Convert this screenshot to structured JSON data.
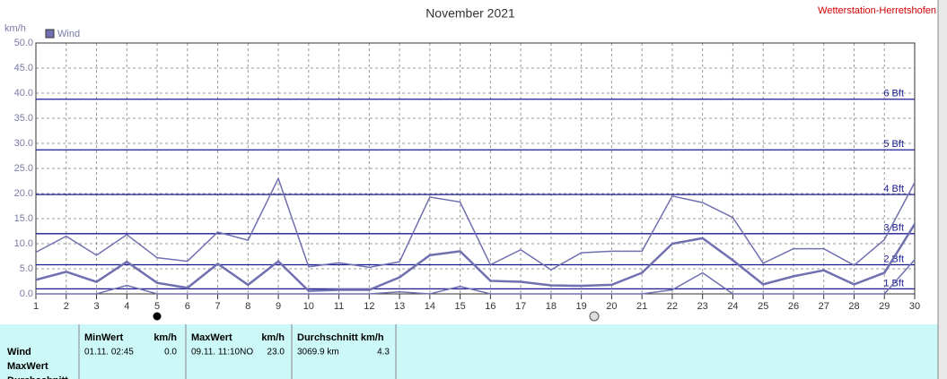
{
  "chart_data": {
    "type": "line",
    "title": "November 2021",
    "station": "Wetterstation-Herretshofen",
    "y_label": "km/h",
    "x": [
      1,
      2,
      3,
      4,
      5,
      6,
      7,
      8,
      9,
      10,
      11,
      12,
      13,
      14,
      15,
      16,
      17,
      18,
      19,
      20,
      21,
      22,
      23,
      24,
      25,
      26,
      27,
      28,
      29,
      30
    ],
    "xlim": [
      1,
      30
    ],
    "xticks": [
      1,
      2,
      3,
      4,
      5,
      6,
      7,
      8,
      9,
      10,
      11,
      12,
      13,
      14,
      15,
      16,
      17,
      18,
      19,
      20,
      21,
      22,
      23,
      24,
      25,
      26,
      27,
      28,
      29,
      30
    ],
    "ylim": [
      0,
      50
    ],
    "yticks": [
      {
        "value": 0,
        "label": "0.0"
      },
      {
        "value": 5,
        "label": "5.0"
      },
      {
        "value": 10,
        "label": "10.0"
      },
      {
        "value": 15,
        "label": "15.0"
      },
      {
        "value": 20,
        "label": "20.0"
      },
      {
        "value": 25,
        "label": "25.0"
      },
      {
        "value": 30,
        "label": "30.0"
      },
      {
        "value": 35,
        "label": "35.0"
      },
      {
        "value": 40,
        "label": "40.0"
      },
      {
        "value": 45,
        "label": "45.0"
      },
      {
        "value": 50,
        "label": "50.0"
      }
    ],
    "grid": true,
    "series": [
      {
        "name": "Wind",
        "color": "#7070b0",
        "values": [
          2.8,
          4.4,
          2.4,
          6.4,
          2.2,
          1.2,
          6.0,
          1.8,
          6.5,
          0.6,
          0.8,
          0.8,
          3.3,
          7.7,
          8.5,
          2.6,
          2.4,
          1.7,
          1.6,
          1.8,
          4.2,
          10.0,
          11.1,
          6.7,
          1.9,
          3.5,
          4.7,
          1.9,
          4.2,
          13.9
        ]
      }
    ],
    "max_values": [
      8.3,
      11.5,
      7.7,
      11.8,
      7.2,
      6.5,
      12.3,
      10.7,
      23.0,
      5.4,
      6.2,
      5.3,
      6.4,
      19.3,
      18.3,
      5.8,
      8.8,
      4.8,
      8.2,
      8.5,
      8.5,
      19.5,
      18.2,
      15.2,
      6.1,
      9.0,
      9.0,
      5.7,
      10.8,
      22.2
    ],
    "min_values": [
      0,
      0,
      0,
      1.7,
      0,
      0,
      0,
      0,
      0,
      0,
      0,
      0,
      0.4,
      0,
      1.5,
      0,
      0,
      0,
      0,
      0,
      0,
      0.8,
      4.2,
      0,
      0,
      0,
      0,
      0,
      0,
      6.8
    ],
    "bft_lines": [
      {
        "value": 1,
        "label": "1 Bft"
      },
      {
        "value": 5.8,
        "label": "2 Bft"
      },
      {
        "value": 12,
        "label": "3 Bft"
      },
      {
        "value": 19.8,
        "label": "4 Bft"
      },
      {
        "value": 28.7,
        "label": "5 Bft"
      },
      {
        "value": 38.8,
        "label": "6 Bft"
      }
    ],
    "bft_color": "#1a1a90"
  },
  "table": {
    "headers": [
      "MinWert",
      "km/h",
      "MaxWert",
      "km/h",
      "Durchschnitt km/h"
    ],
    "rows": [
      [
        "Wind",
        "01.11.  02:45",
        "0.0",
        "09.11.  11:10NO",
        "23.0",
        "3069.9 km",
        "4.3"
      ],
      [
        "MaxWert"
      ],
      [
        "Durchschnitt"
      ]
    ]
  }
}
